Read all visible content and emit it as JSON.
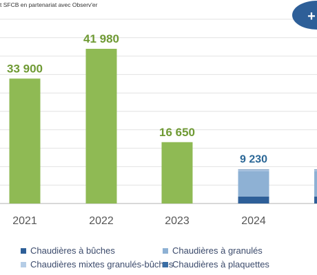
{
  "source_text": "t SFCB en partenariat avec Observ'er",
  "badge_text": "+",
  "colors": {
    "bar_green": "#8fba54",
    "buches": "#2e5f98",
    "granules": "#8eb1d4",
    "mixtes": "#b5cde6",
    "plaquettes": "#3a6ea5",
    "label_green": "#6f9a34",
    "label_blue": "#2b6796",
    "badge": "#2e5f98",
    "axis": "#c0c0c0",
    "grid": "#e2e2e2"
  },
  "chart_data": {
    "type": "bar",
    "categories": [
      "2021",
      "2022",
      "2023",
      "2024",
      ""
    ],
    "values": [
      33900,
      41980,
      16650,
      9230,
      null
    ],
    "value_labels": [
      "33 900",
      "41 980",
      "16 650",
      "9 230",
      ""
    ],
    "ylim": [
      0,
      50000
    ],
    "grid": true,
    "stacked_2024": [
      {
        "name": "Chaudières à bûches",
        "value": 1900
      },
      {
        "name": "Chaudières à granulés",
        "value": 6900
      },
      {
        "name": "Chaudières mixtes granulés-bûches",
        "value": 280
      },
      {
        "name": "Chaudières à plaquettes",
        "value": 150
      }
    ],
    "legend": [
      {
        "name": "Chaudières à bûches",
        "color": "#2e5f98"
      },
      {
        "name": "Chaudières à granulés",
        "color": "#8eb1d4"
      },
      {
        "name": "Chaudières mixtes granulés-bûches",
        "color": "#b5cde6"
      },
      {
        "name": "Chaudières à plaquettes",
        "color": "#3a6ea5"
      }
    ],
    "legend_placement": "bottom"
  }
}
